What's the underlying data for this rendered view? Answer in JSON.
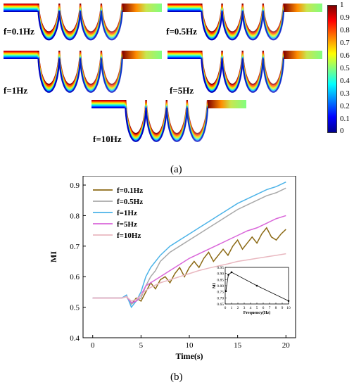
{
  "panel_a": {
    "label": "(a)",
    "frequency_labels": [
      "f=0.1Hz",
      "f=0.5Hz",
      "f=1Hz",
      "f=5Hz",
      "f=10Hz"
    ],
    "colorbar": {
      "ticks": [
        "1",
        "0.9",
        "0.8",
        "0.7",
        "0.6",
        "0.5",
        "0.4",
        "0.3",
        "0.2",
        "0.1",
        "0"
      ],
      "colors": [
        "#7f0000",
        "#ff0000",
        "#ff8000",
        "#ffff00",
        "#80ff80",
        "#00ffff",
        "#0080ff",
        "#0000ff",
        "#00008f"
      ]
    }
  },
  "panel_b": {
    "label": "(b)",
    "chart_data": [
      {
        "type": "line",
        "xlabel": "Time(s)",
        "ylabel": "MI",
        "xlim": [
          -1,
          21
        ],
        "ylim": [
          0.4,
          0.93
        ],
        "xticks": [
          0,
          5,
          10,
          15,
          20
        ],
        "yticks": [
          0.4,
          0.5,
          0.6,
          0.7,
          0.8,
          0.9
        ],
        "legend_position": "top-left",
        "series": [
          {
            "name": "f=0.1Hz",
            "color": "#8b6914",
            "x": [
              0,
              3,
              3.5,
              4,
              4.5,
              5,
              5.5,
              6,
              6.5,
              7,
              7.5,
              8,
              8.5,
              9,
              9.5,
              10,
              10.5,
              11,
              11.5,
              12,
              12.5,
              13,
              13.5,
              14,
              14.5,
              15,
              15.5,
              16,
              16.5,
              17,
              17.5,
              18,
              18.5,
              19,
              19.5,
              20
            ],
            "values": [
              0.53,
              0.53,
              0.535,
              0.51,
              0.53,
              0.52,
              0.55,
              0.58,
              0.56,
              0.59,
              0.6,
              0.58,
              0.61,
              0.63,
              0.6,
              0.63,
              0.65,
              0.63,
              0.66,
              0.68,
              0.65,
              0.67,
              0.69,
              0.67,
              0.7,
              0.72,
              0.69,
              0.71,
              0.73,
              0.71,
              0.74,
              0.76,
              0.73,
              0.72,
              0.74,
              0.755
            ]
          },
          {
            "name": "f=0.5Hz",
            "color": "#a9a9a9",
            "x": [
              0,
              3,
              3.5,
              4,
              4.5,
              5,
              5.5,
              6,
              6.5,
              7,
              8,
              9,
              10,
              11,
              12,
              13,
              14,
              15,
              16,
              17,
              18,
              19,
              20
            ],
            "values": [
              0.53,
              0.53,
              0.535,
              0.51,
              0.52,
              0.53,
              0.57,
              0.6,
              0.62,
              0.65,
              0.68,
              0.7,
              0.72,
              0.74,
              0.76,
              0.78,
              0.8,
              0.82,
              0.835,
              0.85,
              0.865,
              0.875,
              0.89
            ]
          },
          {
            "name": "f=1Hz",
            "color": "#4cb3e8",
            "x": [
              0,
              3,
              3.5,
              4,
              4.5,
              5,
              5.5,
              6,
              6.5,
              7,
              8,
              9,
              10,
              11,
              12,
              13,
              14,
              15,
              16,
              17,
              18,
              19,
              20
            ],
            "values": [
              0.53,
              0.53,
              0.54,
              0.5,
              0.52,
              0.55,
              0.6,
              0.63,
              0.65,
              0.67,
              0.7,
              0.72,
              0.74,
              0.76,
              0.78,
              0.8,
              0.82,
              0.84,
              0.855,
              0.87,
              0.885,
              0.895,
              0.91
            ]
          },
          {
            "name": "f=5Hz",
            "color": "#d966d9",
            "x": [
              0,
              3,
              3.5,
              4,
              4.5,
              5,
              5.5,
              6,
              7,
              8,
              9,
              10,
              11,
              12,
              13,
              14,
              15,
              16,
              17,
              18,
              19,
              20
            ],
            "values": [
              0.53,
              0.53,
              0.535,
              0.515,
              0.52,
              0.54,
              0.57,
              0.58,
              0.6,
              0.62,
              0.64,
              0.66,
              0.675,
              0.69,
              0.705,
              0.72,
              0.735,
              0.75,
              0.76,
              0.775,
              0.79,
              0.8
            ]
          },
          {
            "name": "f=10Hz",
            "color": "#e9b8c0",
            "x": [
              0,
              3,
              3.5,
              4,
              4.5,
              5,
              5.5,
              6,
              7,
              8,
              9,
              10,
              11,
              12,
              13,
              14,
              15,
              16,
              17,
              18,
              19,
              20
            ],
            "values": [
              0.53,
              0.53,
              0.535,
              0.52,
              0.525,
              0.54,
              0.555,
              0.565,
              0.58,
              0.59,
              0.6,
              0.61,
              0.62,
              0.628,
              0.635,
              0.642,
              0.65,
              0.655,
              0.66,
              0.665,
              0.67,
              0.675
            ]
          }
        ]
      },
      {
        "type": "line",
        "xlabel": "Frequency(Hz)",
        "ylabel": "MI",
        "xlim": [
          0,
          10
        ],
        "ylim": [
          0.65,
          0.95
        ],
        "xticks": [
          0,
          1,
          2,
          3,
          4,
          5,
          6,
          7,
          8,
          9,
          10
        ],
        "yticks": [
          0.65,
          0.7,
          0.75,
          0.8,
          0.85,
          0.9,
          0.95
        ],
        "series": [
          {
            "color": "#000000",
            "x": [
              0.1,
              0.5,
              1,
              5,
              10
            ],
            "values": [
              0.755,
              0.89,
              0.91,
              0.8,
              0.675
            ]
          }
        ]
      }
    ]
  }
}
